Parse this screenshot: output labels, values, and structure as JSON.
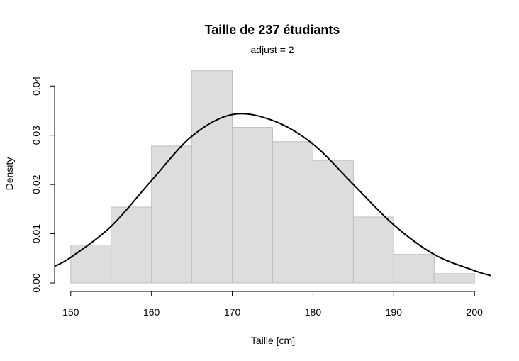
{
  "chart_data": {
    "type": "bar",
    "title": "Taille de 237 étudiants",
    "subtitle": "adjust = 2",
    "xlabel": "Taille [cm]",
    "ylabel": "Density",
    "bins": [
      {
        "start": 150,
        "end": 155,
        "density": 0.0077
      },
      {
        "start": 155,
        "end": 160,
        "density": 0.0154
      },
      {
        "start": 160,
        "end": 165,
        "density": 0.0278
      },
      {
        "start": 165,
        "end": 170,
        "density": 0.0431
      },
      {
        "start": 170,
        "end": 175,
        "density": 0.0316
      },
      {
        "start": 175,
        "end": 180,
        "density": 0.0287
      },
      {
        "start": 180,
        "end": 185,
        "density": 0.0249
      },
      {
        "start": 185,
        "end": 190,
        "density": 0.0134
      },
      {
        "start": 190,
        "end": 195,
        "density": 0.0058
      },
      {
        "start": 195,
        "end": 200,
        "density": 0.0019
      }
    ],
    "density_curve": {
      "x": [
        148,
        150,
        155,
        160,
        165,
        170,
        175,
        180,
        185,
        190,
        195,
        200,
        202
      ],
      "y": [
        0.0034,
        0.0052,
        0.0115,
        0.0208,
        0.0298,
        0.0342,
        0.033,
        0.0282,
        0.02,
        0.0118,
        0.0058,
        0.0025,
        0.0015
      ]
    },
    "xlim": [
      148,
      202
    ],
    "ylim": [
      0,
      0.0445
    ],
    "x_ticks": [
      150,
      160,
      170,
      180,
      190,
      200
    ],
    "x_tick_labels": [
      "150",
      "160",
      "170",
      "180",
      "190",
      "200"
    ],
    "y_ticks": [
      0,
      0.01,
      0.02,
      0.03,
      0.04
    ],
    "y_tick_labels": [
      "0.00",
      "0.01",
      "0.02",
      "0.03",
      "0.04"
    ],
    "bar_fill": "#dddddd",
    "bar_stroke": "#bebebe",
    "curve_color": "#000000",
    "grid": false
  }
}
